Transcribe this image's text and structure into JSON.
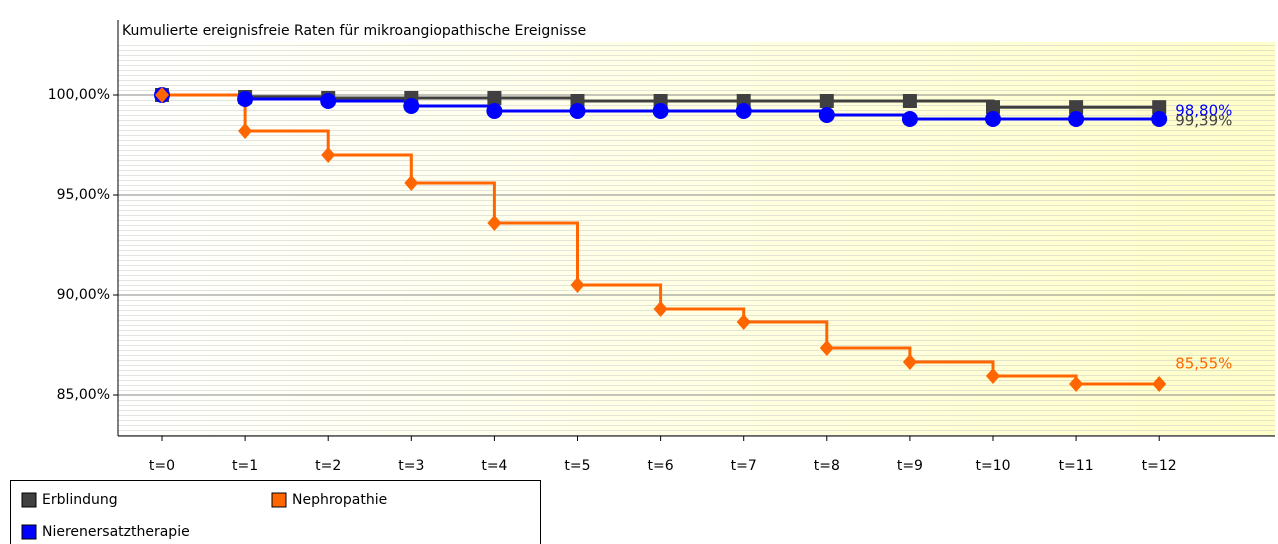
{
  "chart_data": {
    "type": "step-line",
    "title": "Kumulierte ereignisfreie Raten für mikroangiopathische Ereignisse",
    "categories": [
      "t=0",
      "t=1",
      "t=2",
      "t=3",
      "t=4",
      "t=5",
      "t=6",
      "t=7",
      "t=8",
      "t=9",
      "t=10",
      "t=11",
      "t=12"
    ],
    "ylim": [
      82.95,
      103.75
    ],
    "yticks": [
      {
        "value": 85,
        "label": "85,00%"
      },
      {
        "value": 90,
        "label": "90,00%"
      },
      {
        "value": 95,
        "label": "95,00%"
      },
      {
        "value": 100,
        "label": "100,00%"
      }
    ],
    "grid": true,
    "legend": "bottom-left",
    "series": [
      {
        "name": "Erblindung",
        "color": "#404040",
        "marker": "square",
        "values": [
          100,
          99.9,
          99.85,
          99.85,
          99.85,
          99.7,
          99.7,
          99.7,
          99.7,
          99.7,
          99.39,
          99.39,
          99.39
        ],
        "value_labels": [
          null,
          null,
          null,
          null,
          null,
          null,
          null,
          null,
          null,
          null,
          null,
          null,
          "99,39%"
        ]
      },
      {
        "name": "Nierenersatztherapie",
        "color": "#0000ff",
        "marker": "circle",
        "values": [
          100,
          99.8,
          99.7,
          99.45,
          99.2,
          99.2,
          99.2,
          99.2,
          99.0,
          98.8,
          98.8,
          98.8,
          98.8
        ],
        "value_labels": [
          null,
          null,
          null,
          null,
          null,
          null,
          null,
          null,
          null,
          null,
          null,
          null,
          "98,80%"
        ]
      },
      {
        "name": "Nephropathie",
        "color": "#ff6600",
        "marker": "diamond",
        "values": [
          100,
          98.2,
          97.0,
          95.6,
          93.6,
          90.5,
          89.3,
          88.65,
          87.35,
          86.65,
          85.95,
          85.55,
          85.55
        ],
        "value_labels": [
          null,
          null,
          null,
          null,
          null,
          null,
          null,
          null,
          null,
          null,
          null,
          null,
          "85,55%"
        ]
      }
    ]
  }
}
